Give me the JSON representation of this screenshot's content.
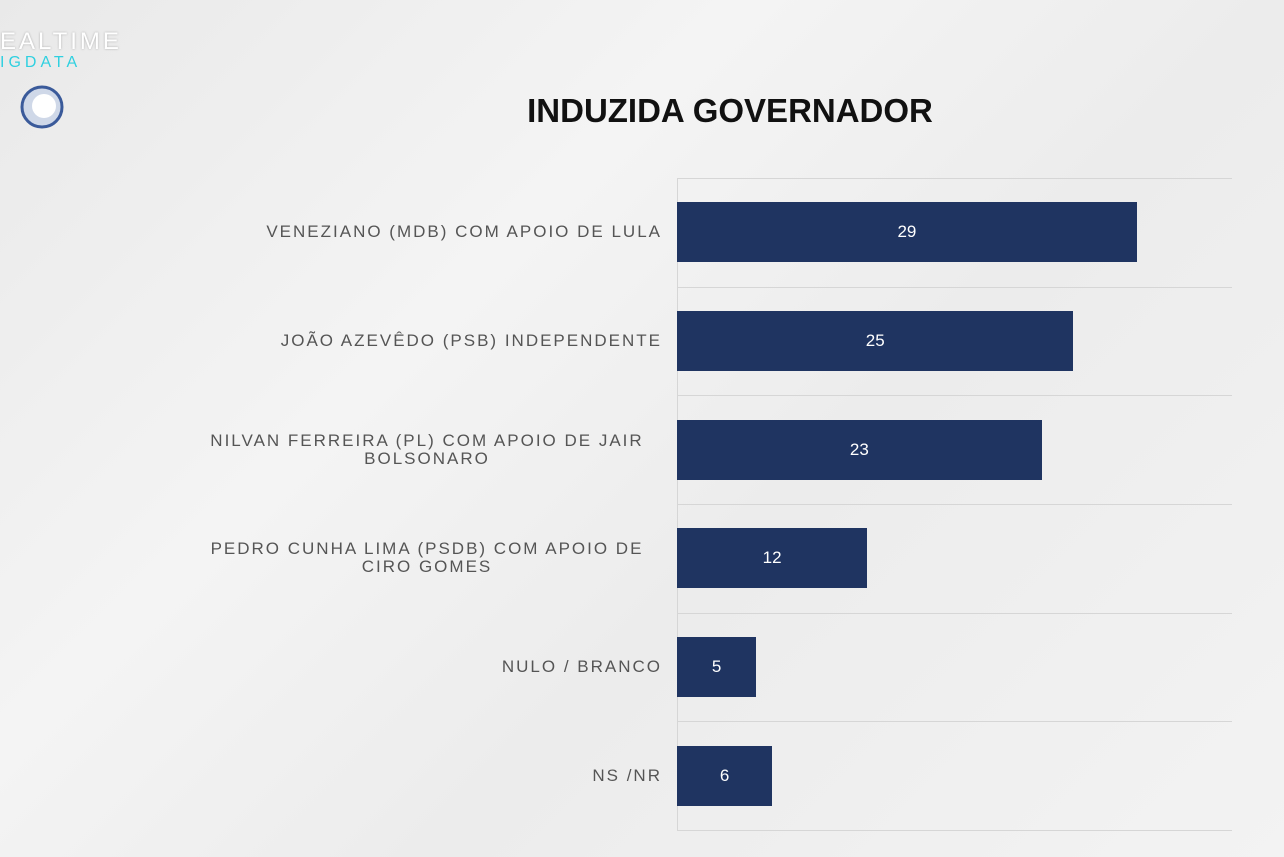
{
  "logo": {
    "line1": "EALTIME",
    "line2": "IGDATA"
  },
  "chart_data": {
    "type": "bar",
    "orientation": "horizontal",
    "title": "INDUZIDA GOVERNADOR",
    "categories": [
      "VENEZIANO  (MDB) COM APOIO DE LULA",
      "JOÃO AZEVÊDO (PSB) INDEPENDENTE",
      "NILVAN FERREIRA (PL) COM APOIO DE JAIR BOLSONARO",
      "PEDRO CUNHA LIMA (PSDB) COM APOIO DE CIRO GOMES",
      "NULO / BRANCO",
      "NS /NR"
    ],
    "values": [
      29,
      25,
      23,
      12,
      5,
      6
    ],
    "color": "#1f3461",
    "xlim": [
      0,
      35
    ]
  }
}
